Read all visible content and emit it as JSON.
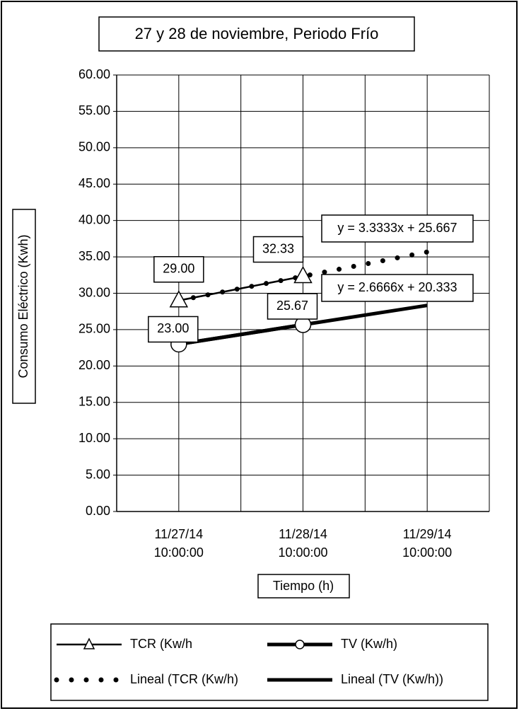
{
  "chart_data": {
    "type": "line",
    "title": "27 y 28 de noviembre, Periodo Frío",
    "xlabel": "Tiempo (h)",
    "ylabel": "Consumo Eléctrico (Kwh)",
    "categories": [
      "11/27/14 10:00:00",
      "11/28/14 10:00:00",
      "11/29/14 10:00:00"
    ],
    "ylim": [
      0,
      60
    ],
    "yticks": [
      {
        "value": 0,
        "label": "0.00"
      },
      {
        "value": 5,
        "label": "5.00"
      },
      {
        "value": 10,
        "label": "10.00"
      },
      {
        "value": 15,
        "label": "15.00"
      },
      {
        "value": 20,
        "label": "20.00"
      },
      {
        "value": 25,
        "label": "25.00"
      },
      {
        "value": 30,
        "label": "30.00"
      },
      {
        "value": 35,
        "label": "35.00"
      },
      {
        "value": 40,
        "label": "40.00"
      },
      {
        "value": 45,
        "label": "45.00"
      },
      {
        "value": 50,
        "label": "50.00"
      },
      {
        "value": 55,
        "label": "55.00"
      },
      {
        "value": 60,
        "label": "60.00"
      }
    ],
    "grid": true,
    "legend": "bottom",
    "series": [
      {
        "name": "TCR (Kw/h",
        "color": "#000000",
        "marker": "triangle",
        "style": "solid",
        "values": [
          29.0,
          32.33,
          null
        ],
        "value_labels": [
          "29.00",
          "32.33",
          null
        ]
      },
      {
        "name": "TV (Kw/h)",
        "color": "#000000",
        "marker": "circle",
        "style": "thick",
        "values": [
          23.0,
          25.67,
          null
        ],
        "value_labels": [
          "23.00",
          "25.67",
          null
        ]
      },
      {
        "name": "Lineal (TCR (Kw/h)",
        "color": "#000000",
        "style": "dotted",
        "values": [
          29.0,
          32.33,
          35.67
        ]
      },
      {
        "name": "Lineal (TV (Kw/h))",
        "color": "#000000",
        "style": "thick",
        "values": [
          23.0,
          25.67,
          28.33
        ]
      }
    ],
    "annotations": [
      {
        "text": "y = 3.3333x + 25.667"
      },
      {
        "text": "y = 2.6666x + 20.333"
      }
    ]
  }
}
